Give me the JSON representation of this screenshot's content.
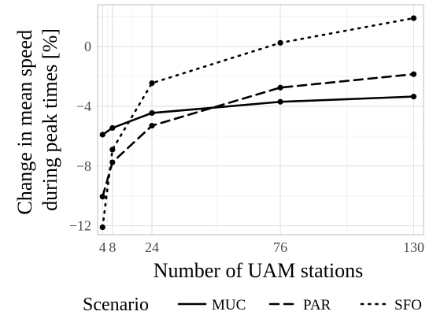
{
  "chart_data": {
    "type": "line",
    "xlabel": "Number of UAM stations",
    "ylabel": [
      "Change in mean speed",
      "during peak times [%]"
    ],
    "x_ticks": [
      4,
      8,
      24,
      76,
      130
    ],
    "x_tick_labels": [
      "4",
      "8",
      "24",
      "76",
      "130"
    ],
    "y_ticks": [
      -12,
      -8,
      -4,
      0
    ],
    "y_tick_labels": [
      "−12",
      "−8",
      "−4",
      "0"
    ],
    "xlim": [
      2,
      134
    ],
    "ylim": [
      -12.6,
      2.8
    ],
    "grid": true,
    "legend": {
      "title": "Scenario",
      "position": "bottom"
    },
    "series": [
      {
        "name": "MUC",
        "dash": "solid",
        "x": [
          4,
          8,
          24,
          76,
          130
        ],
        "y": [
          -5.9,
          -5.45,
          -4.45,
          -3.7,
          -3.35
        ]
      },
      {
        "name": "PAR",
        "dash": "dashed",
        "x": [
          4,
          8,
          24,
          76,
          130
        ],
        "y": [
          -10.05,
          -7.75,
          -5.3,
          -2.75,
          -1.85
        ]
      },
      {
        "name": "SFO",
        "dash": "dotted",
        "x": [
          4,
          8,
          24,
          76,
          130
        ],
        "y": [
          -12.1,
          -6.9,
          -2.45,
          0.25,
          1.9
        ]
      }
    ]
  }
}
